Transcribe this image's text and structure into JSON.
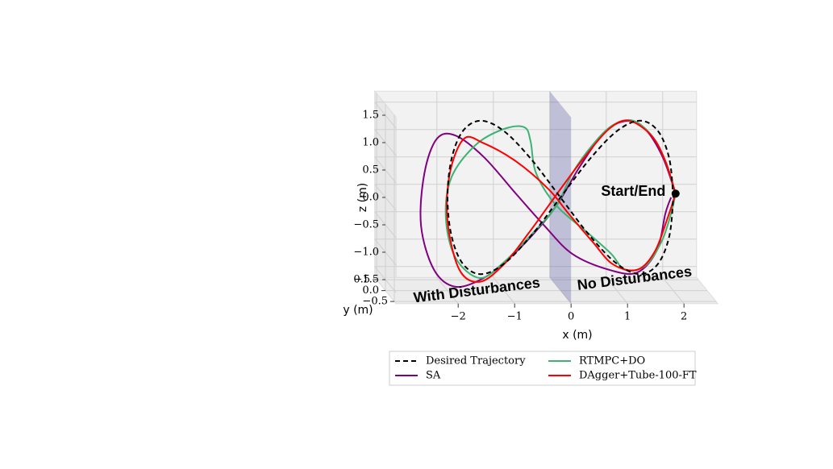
{
  "chart_data": {
    "type": "line3d",
    "xlabel": "x (m)",
    "ylabel": "y (m)",
    "zlabel": "z (m)",
    "xlim": [
      -3.1,
      2.6
    ],
    "ylim": [
      -0.6,
      0.6
    ],
    "zlim": [
      -1.7,
      1.7
    ],
    "xticks": [
      {
        "value": -2,
        "label": "−2"
      },
      {
        "value": -1,
        "label": "−1"
      },
      0,
      1,
      2
    ],
    "yticks": [
      {
        "value": -0.5,
        "label": "−0.5"
      },
      {
        "value": 0,
        "label": "0.0"
      },
      0.5
    ],
    "zticks": [
      {
        "value": -1.5,
        "label": "−1.5"
      },
      {
        "value": -1.0,
        "label": "−1.0"
      },
      {
        "value": -0.5,
        "label": "−0.5"
      },
      {
        "value": 0,
        "label": "0.0"
      },
      0.5,
      {
        "value": 1.0,
        "label": "1.0"
      },
      1.5
    ],
    "grid": true,
    "plane_x": 0,
    "annotations": [
      {
        "text": "With Disturbances",
        "x": -2.6,
        "z": -1.85
      },
      {
        "text": "No Disturbances",
        "x": 0.3,
        "z": -1.62
      },
      {
        "text": "Start/End",
        "x": 0.72,
        "z": 0.1
      }
    ],
    "start_marker": {
      "x": 2.04,
      "z": 0.07
    },
    "series": [
      {
        "name": "Desired Trajectory",
        "color": "#000000",
        "line_style": "dashed",
        "x": [
          2,
          1.93,
          1.73,
          1.41,
          1.0,
          0.52,
          0,
          -0.52,
          -1.0,
          -1.41,
          -1.73,
          -1.93,
          -2,
          -1.93,
          -1.73,
          -1.41,
          -1.0,
          -0.52,
          0,
          0.52,
          1.0,
          1.41,
          1.73,
          1.93,
          2
        ],
        "z": [
          0,
          0.7,
          1.21,
          1.4,
          1.21,
          0.7,
          0,
          -0.7,
          -1.21,
          -1.4,
          -1.21,
          -0.7,
          0,
          0.7,
          1.21,
          1.4,
          1.21,
          0.7,
          0,
          -0.7,
          -1.21,
          -1.4,
          -1.21,
          -0.7,
          0
        ]
      },
      {
        "name": "SA",
        "color": "#800080",
        "line_style": "solid",
        "x": [
          2.04,
          1.81,
          1.5,
          1.21,
          0.81,
          0.36,
          -0.07,
          -0.5,
          -0.93,
          -1.36,
          -1.86,
          -2.24,
          -2.47,
          -2.41,
          -2.19,
          -1.86,
          -1.36,
          -0.79,
          -0.29,
          0.21,
          0.86,
          1.36,
          1.71,
          1.86,
          1.96
        ],
        "z": [
          0.07,
          0.74,
          1.25,
          1.4,
          1.22,
          0.59,
          -0.15,
          -0.69,
          -1.13,
          -1.47,
          -1.63,
          -1.32,
          -0.51,
          0.44,
          1.07,
          1.13,
          0.74,
          0.07,
          -0.51,
          -1.03,
          -1.32,
          -1.37,
          -0.96,
          -0.29,
          0
        ]
      },
      {
        "name": "RTMPC+DO",
        "color": "#3cb371",
        "line_style": "solid",
        "x": [
          2.04,
          1.86,
          1.64,
          1.29,
          0.93,
          0.57,
          0.21,
          -0.07,
          -0.5,
          -1.0,
          -1.43,
          -1.86,
          -2.03,
          -1.93,
          -1.5,
          -1.0,
          -0.64,
          -0.53,
          -0.43,
          -0.07,
          0.5,
          0.9,
          1.14,
          1.5,
          1.79,
          1.96,
          2.04
        ],
        "z": [
          0.07,
          0.66,
          1.1,
          1.4,
          1.32,
          0.96,
          0.44,
          -0.15,
          -0.66,
          -1.18,
          -1.47,
          -1.1,
          -0.37,
          0.37,
          0.96,
          1.25,
          1.28,
          1.03,
          0.44,
          -0.15,
          -0.66,
          -1.03,
          -1.32,
          -1.25,
          -0.81,
          -0.29,
          0.07
        ]
      },
      {
        "name": "DAgger+Tube-100-FT",
        "color": "#ff0000",
        "line_style": "solid",
        "x": [
          2.04,
          1.86,
          1.61,
          1.21,
          0.86,
          0.43,
          0.07,
          -0.21,
          -0.57,
          -1.0,
          -1.43,
          -1.79,
          -2.0,
          -1.96,
          -1.71,
          -1.36,
          -0.79,
          -0.21,
          0.14,
          0.57,
          0.93,
          1.36,
          1.67,
          1.9,
          2.04
        ],
        "z": [
          0.07,
          0.66,
          1.13,
          1.4,
          1.25,
          0.74,
          0.25,
          -0.15,
          -0.66,
          -1.22,
          -1.54,
          -1.32,
          -0.44,
          0.44,
          1.07,
          0.99,
          0.66,
          0.15,
          -0.29,
          -0.81,
          -1.22,
          -1.32,
          -0.99,
          -0.37,
          0.07
        ]
      }
    ]
  }
}
